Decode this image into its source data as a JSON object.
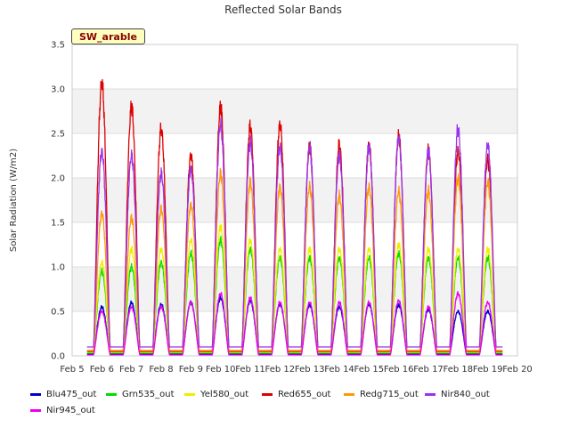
{
  "chart_data": {
    "type": "line",
    "title": "Reflected Solar Bands",
    "xlabel": "",
    "ylabel": "Solar Radiation (W/m2)",
    "annotation": "SW_arable",
    "x_tick_labels": [
      "Feb 5",
      "Feb 6",
      "Feb 7",
      "Feb 8",
      "Feb 9",
      "Feb 10",
      "Feb 11",
      "Feb 12",
      "Feb 13",
      "Feb 14",
      "Feb 15",
      "Feb 16",
      "Feb 17",
      "Feb 18",
      "Feb 19",
      "Feb 20"
    ],
    "xlim": [
      5,
      20
    ],
    "ylim": [
      0,
      3.5
    ],
    "y_ticks": [
      0.0,
      0.5,
      1.0,
      1.5,
      2.0,
      2.5,
      3.0,
      3.5
    ],
    "y_tick_labels": [
      "0.0",
      "0.5",
      "1.0",
      "1.5",
      "2.0",
      "2.5",
      "3.0",
      "3.5"
    ],
    "grid": "horizontal bands",
    "legend_position": "bottom",
    "data_start_day": 5.5,
    "data_end_day": 19.5,
    "daily_peak_day": [
      6,
      7,
      8,
      9,
      10,
      11,
      12,
      13,
      14,
      15,
      16,
      17,
      18,
      19
    ],
    "series": [
      {
        "name": "Blu475_out",
        "color": "#0000cc",
        "night": 0.02,
        "peaks": [
          0.55,
          0.6,
          0.58,
          0.6,
          0.65,
          0.62,
          0.58,
          0.57,
          0.55,
          0.58,
          0.57,
          0.52,
          0.5,
          0.5
        ]
      },
      {
        "name": "Grn535_out",
        "color": "#00dd00",
        "night": 0.03,
        "peaks": [
          0.95,
          1.0,
          1.05,
          1.15,
          1.3,
          1.2,
          1.1,
          1.1,
          1.1,
          1.1,
          1.15,
          1.1,
          1.1,
          1.1
        ]
      },
      {
        "name": "Yel580_out",
        "color": "#eeee00",
        "night": 0.04,
        "peaks": [
          1.05,
          1.2,
          1.2,
          1.3,
          1.45,
          1.3,
          1.2,
          1.2,
          1.2,
          1.2,
          1.25,
          1.2,
          1.2,
          1.2
        ]
      },
      {
        "name": "Red655_out",
        "color": "#dd0000",
        "night": 0.05,
        "peaks": [
          3.07,
          2.8,
          2.55,
          2.25,
          2.8,
          2.58,
          2.6,
          2.35,
          2.37,
          2.37,
          2.47,
          2.3,
          2.3,
          2.2
        ]
      },
      {
        "name": "Redg715_out",
        "color": "#ff9900",
        "night": 0.06,
        "peaks": [
          1.6,
          1.55,
          1.65,
          1.7,
          2.05,
          1.95,
          1.9,
          1.9,
          1.8,
          1.9,
          1.85,
          1.85,
          2.0,
          1.95
        ]
      },
      {
        "name": "Nir840_out",
        "color": "#9933ee",
        "night": 0.1,
        "peaks": [
          2.3,
          2.25,
          2.05,
          2.1,
          2.6,
          2.4,
          2.35,
          2.35,
          2.25,
          2.35,
          2.45,
          2.3,
          2.55,
          2.37
        ]
      },
      {
        "name": "Nir945_out",
        "color": "#ee00ee",
        "night": 0.01,
        "peaks": [
          0.5,
          0.55,
          0.55,
          0.6,
          0.7,
          0.65,
          0.6,
          0.6,
          0.6,
          0.6,
          0.62,
          0.55,
          0.7,
          0.6
        ]
      }
    ]
  }
}
